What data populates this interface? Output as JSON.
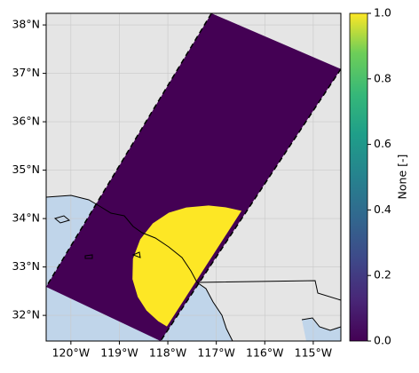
{
  "chart_data": {
    "type": "map",
    "xlim": [
      -120.51,
      -114.43
    ],
    "ylim": [
      31.47,
      38.24
    ],
    "xticks": [
      {
        "value": -120,
        "label": "120°W"
      },
      {
        "value": -119,
        "label": "119°W"
      },
      {
        "value": -118,
        "label": "118°W"
      },
      {
        "value": -117,
        "label": "117°W"
      },
      {
        "value": -116,
        "label": "116°W"
      },
      {
        "value": -115,
        "label": "115°W"
      }
    ],
    "yticks": [
      {
        "value": 32,
        "label": "32°N"
      },
      {
        "value": 33,
        "label": "33°N"
      },
      {
        "value": 34,
        "label": "34°N"
      },
      {
        "value": 35,
        "label": "35°N"
      },
      {
        "value": 36,
        "label": "36°N"
      },
      {
        "value": 37,
        "label": "37°N"
      },
      {
        "value": 38,
        "label": "38°N"
      }
    ],
    "grid": true,
    "regions": [
      {
        "value": 0,
        "color": "#440154",
        "lon": [
          -117.1,
          -114.43,
          -118.15,
          -120.51
        ],
        "lat": [
          38.24,
          37.09,
          31.47,
          32.59
        ]
      },
      {
        "value": 1,
        "color": "#fde725",
        "lon": [
          -116.48,
          -116.79,
          -117.16,
          -117.62,
          -117.98,
          -118.31,
          -118.57,
          -118.72,
          -118.73,
          -118.62,
          -118.44,
          -118.2,
          -118.02
        ],
        "lat": [
          34.16,
          34.23,
          34.27,
          34.23,
          34.12,
          33.9,
          33.57,
          33.17,
          32.75,
          32.38,
          32.1,
          31.88,
          31.77
        ]
      }
    ],
    "colorbar": {
      "label": "None [-]",
      "lim": [
        0,
        1
      ],
      "ticks": [
        {
          "value": 0,
          "label": "0.0"
        },
        {
          "value": 0.2,
          "label": "0.2"
        },
        {
          "value": 0.4,
          "label": "0.4"
        },
        {
          "value": 0.6,
          "label": "0.6"
        },
        {
          "value": 0.8,
          "label": "0.8"
        },
        {
          "value": 1,
          "label": "1.0"
        }
      ]
    }
  }
}
